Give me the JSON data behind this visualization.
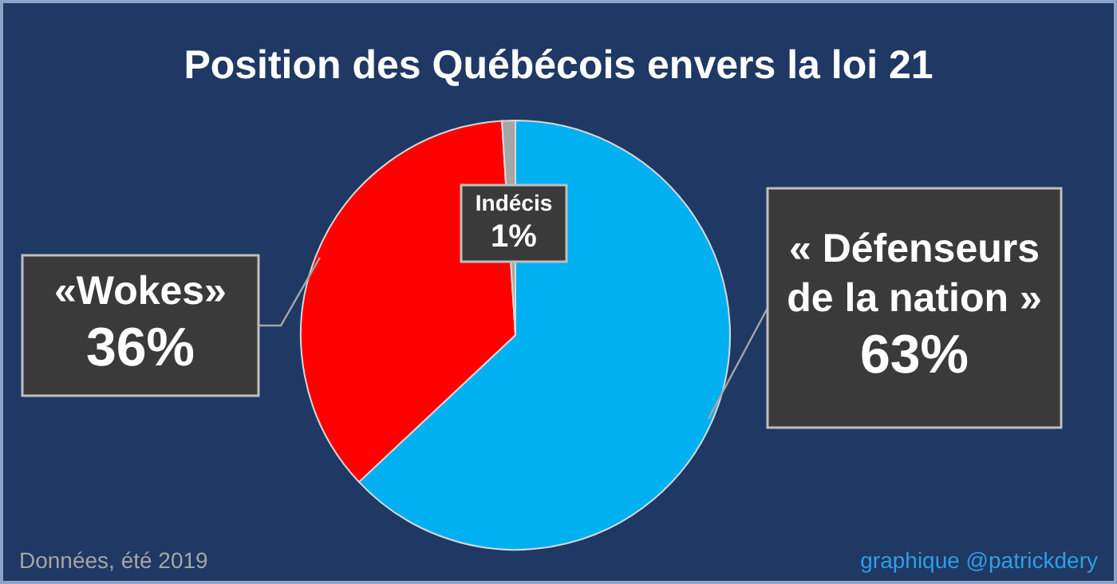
{
  "chart_data": {
    "type": "pie",
    "title": "Position des Québécois envers la loi 21",
    "categories": [
      "« Défenseurs de la nation »",
      "«Wokes»",
      "Indécis"
    ],
    "values": [
      63,
      36,
      1
    ],
    "colors": [
      "#00b0f0",
      "#ff0000",
      "#a6a6a6"
    ],
    "value_labels": [
      "63%",
      "36%",
      "1%"
    ],
    "legend": false,
    "annotations": [
      "Données, été 2019",
      "graphique @patrickdery"
    ]
  }
}
